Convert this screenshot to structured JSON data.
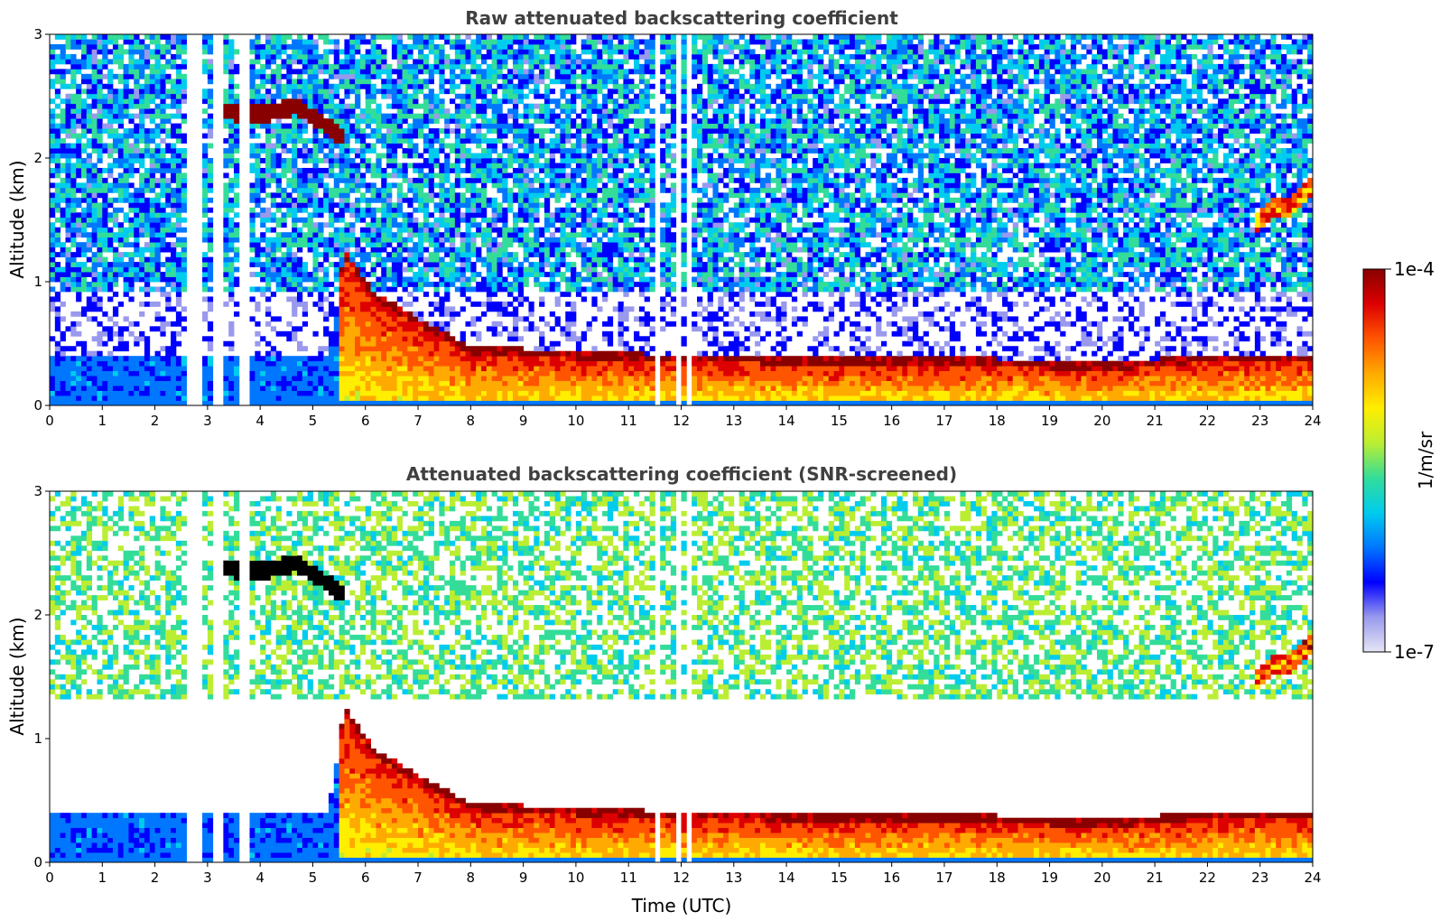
{
  "chart_data": [
    {
      "type": "heatmap",
      "title": "Raw attenuated backscattering coefficient",
      "xlabel": "",
      "ylabel": "Altitude (km)",
      "xlim": [
        0,
        24
      ],
      "ylim": [
        0,
        3
      ],
      "xticks": [
        "0",
        "1",
        "2",
        "3",
        "4",
        "5",
        "6",
        "7",
        "8",
        "9",
        "10",
        "11",
        "12",
        "13",
        "14",
        "15",
        "16",
        "17",
        "18",
        "19",
        "20",
        "21",
        "22",
        "23",
        "24"
      ],
      "yticks": [
        "0",
        "1",
        "2",
        "3"
      ],
      "screened": false,
      "features": {
        "boundary_layer_top": [
          {
            "t": 0,
            "alt": 0.38
          },
          {
            "t": 2.5,
            "alt": 0.42
          },
          {
            "t": 5.3,
            "alt": 0.42
          },
          {
            "t": 5.6,
            "alt": 1.2
          },
          {
            "t": 6.2,
            "alt": 0.85
          },
          {
            "t": 7.0,
            "alt": 0.65
          },
          {
            "t": 8.0,
            "alt": 0.42
          },
          {
            "t": 10.0,
            "alt": 0.38
          },
          {
            "t": 12.0,
            "alt": 0.35
          },
          {
            "t": 15.0,
            "alt": 0.33
          },
          {
            "t": 18.0,
            "alt": 0.32
          },
          {
            "t": 20.0,
            "alt": 0.28
          },
          {
            "t": 22.0,
            "alt": 0.35
          },
          {
            "t": 24.0,
            "alt": 0.35
          }
        ],
        "elevated_cloud": [
          {
            "t": 3.3,
            "alt": 2.38
          },
          {
            "t": 4.0,
            "alt": 2.35
          },
          {
            "t": 4.7,
            "alt": 2.42
          },
          {
            "t": 5.2,
            "alt": 2.28
          },
          {
            "t": 5.5,
            "alt": 2.18
          }
        ],
        "high_cloud": [
          {
            "t": 22.9,
            "alt": 1.48
          },
          {
            "t": 23.2,
            "alt": 1.58
          },
          {
            "t": 23.5,
            "alt": 1.6
          },
          {
            "t": 23.9,
            "alt": 1.75
          }
        ],
        "data_gaps": [
          {
            "t0": 2.65,
            "t1": 2.85
          },
          {
            "t0": 3.15,
            "t1": 3.28
          },
          {
            "t0": 3.6,
            "t1": 3.65
          },
          {
            "t0": 3.75,
            "t1": 3.8
          },
          {
            "t0": 11.5,
            "t1": 11.55
          },
          {
            "t0": 11.95,
            "t1": 12.0
          },
          {
            "t0": 12.1,
            "t1": 12.15
          }
        ]
      }
    },
    {
      "type": "heatmap",
      "title": "Attenuated backscattering coefficient (SNR-screened)",
      "xlabel": "Time (UTC)",
      "ylabel": "Altitude (km)",
      "xlim": [
        0,
        24
      ],
      "ylim": [
        0,
        3
      ],
      "xticks": [
        "0",
        "1",
        "2",
        "3",
        "4",
        "5",
        "6",
        "7",
        "8",
        "9",
        "10",
        "11",
        "12",
        "13",
        "14",
        "15",
        "16",
        "17",
        "18",
        "19",
        "20",
        "21",
        "22",
        "23",
        "24"
      ],
      "yticks": [
        "0",
        "1",
        "2",
        "3"
      ],
      "screened": true
    }
  ],
  "colorbar": {
    "label": "1/m/sr",
    "max_label": "1e-4",
    "min_label": "1e-7",
    "vmin": 1e-07,
    "vmax": 0.0001,
    "scale": "log",
    "colormap": [
      "#e6e6f6",
      "#9999ee",
      "#0000ff",
      "#0077ff",
      "#00ccee",
      "#33dd99",
      "#bbee33",
      "#ffee00",
      "#ffaa00",
      "#ff5500",
      "#dd0000",
      "#880000"
    ]
  }
}
